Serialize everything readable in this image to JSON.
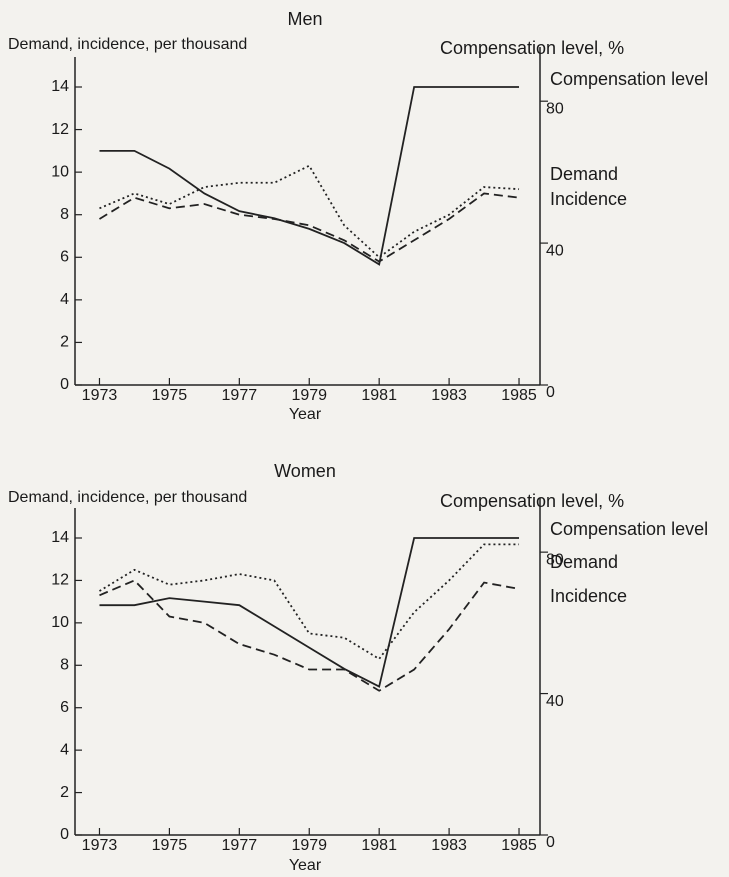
{
  "chart_data": [
    {
      "type": "line",
      "title": "Men",
      "ylabel": "Demand, incidence, per thousand",
      "y2label": "Compensation level, %",
      "xlabel": "Year",
      "x": [
        1973,
        1974,
        1975,
        1976,
        1977,
        1978,
        1979,
        1980,
        1981,
        1982,
        1983,
        1984,
        1985
      ],
      "xlim": [
        1972.3,
        1985.6
      ],
      "xticks": [
        1973,
        1975,
        1977,
        1979,
        1981,
        1983,
        1985
      ],
      "ylim": [
        0,
        14
      ],
      "yticks": [
        0,
        2,
        4,
        6,
        8,
        10,
        12,
        14
      ],
      "y2lim": [
        0,
        84
      ],
      "y2ticks": [
        0,
        40,
        80
      ],
      "series": [
        {
          "name": "Compensation level",
          "color": "#222222",
          "style": "solid",
          "axis": "y2",
          "values": [
            66,
            66,
            61,
            54,
            49,
            47,
            44,
            40,
            34,
            84,
            84,
            84,
            84
          ]
        },
        {
          "name": "Demand",
          "color": "#222222",
          "style": "dotted",
          "values": [
            8.3,
            9.0,
            8.5,
            9.3,
            9.5,
            9.5,
            10.3,
            7.5,
            6.0,
            7.2,
            8.0,
            9.3,
            9.2
          ]
        },
        {
          "name": "Incidence",
          "color": "#222222",
          "style": "dashed",
          "values": [
            7.8,
            8.8,
            8.3,
            8.5,
            8.0,
            7.8,
            7.5,
            6.8,
            5.8,
            6.8,
            7.8,
            9.0,
            8.8
          ]
        }
      ]
    },
    {
      "type": "line",
      "title": "Women",
      "ylabel": "Demand, incidence, per thousand",
      "y2label": "Compensation level, %",
      "xlabel": "Year",
      "x": [
        1973,
        1974,
        1975,
        1976,
        1977,
        1978,
        1979,
        1980,
        1981,
        1982,
        1983,
        1984,
        1985
      ],
      "xlim": [
        1972.3,
        1985.6
      ],
      "xticks": [
        1973,
        1975,
        1977,
        1979,
        1981,
        1983,
        1985
      ],
      "ylim": [
        0,
        14
      ],
      "yticks": [
        0,
        2,
        4,
        6,
        8,
        10,
        12,
        14
      ],
      "y2lim": [
        0,
        84
      ],
      "y2ticks": [
        0,
        40,
        80
      ],
      "series": [
        {
          "name": "Compensation level",
          "color": "#222222",
          "style": "solid",
          "axis": "y2",
          "values": [
            65,
            65,
            67,
            66,
            65,
            59,
            53,
            47,
            42,
            84,
            84,
            84,
            84
          ]
        },
        {
          "name": "Demand",
          "color": "#222222",
          "style": "dotted",
          "values": [
            11.5,
            12.5,
            11.8,
            12.0,
            12.3,
            12.0,
            9.5,
            9.3,
            8.3,
            10.5,
            12.0,
            13.7,
            13.7
          ]
        },
        {
          "name": "Incidence",
          "color": "#222222",
          "style": "dashed",
          "values": [
            11.3,
            12.0,
            10.3,
            10.0,
            9.0,
            8.5,
            7.8,
            7.8,
            6.8,
            7.8,
            9.7,
            11.9,
            11.6
          ]
        }
      ]
    }
  ]
}
